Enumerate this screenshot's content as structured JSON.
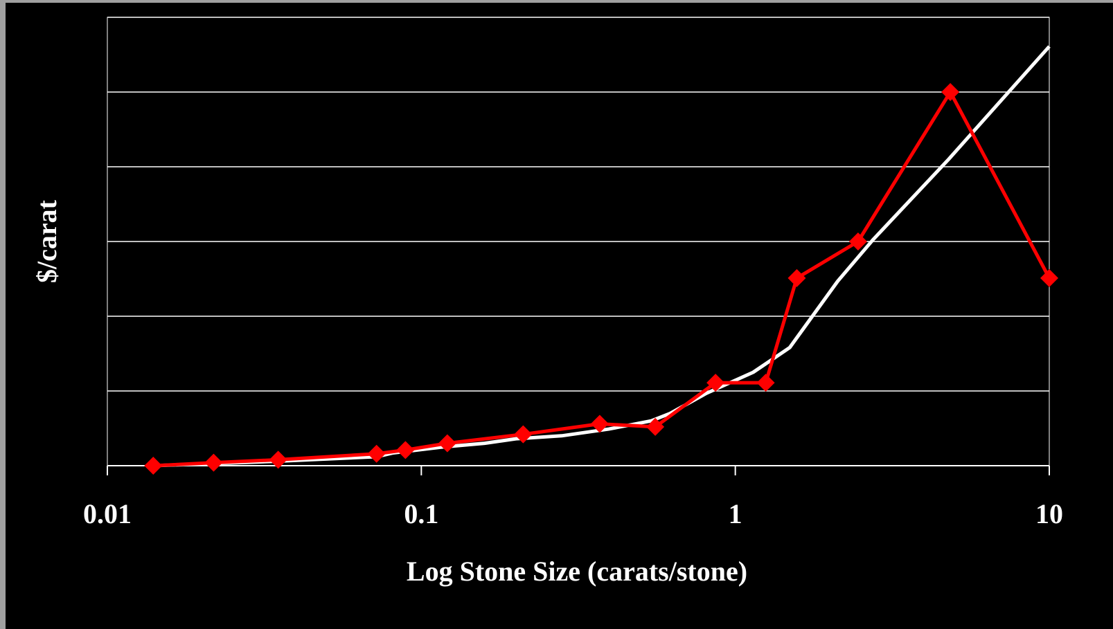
{
  "chart_data": {
    "type": "line",
    "xlabel": "Log Stone Size (carats/stone)",
    "ylabel": "$/carat",
    "xscale": "log",
    "xlim": [
      0.01,
      10
    ],
    "xticks": [
      0.01,
      0.1,
      1,
      10
    ],
    "ylim": [
      0,
      6
    ],
    "yticks": [
      0,
      1,
      2,
      3,
      4,
      5,
      6
    ],
    "grid": true,
    "series": [
      {
        "color": "#ffffff",
        "marker": "none",
        "x": [
          0.014,
          0.035,
          0.072,
          0.081,
          0.117,
          0.159,
          0.2,
          0.28,
          0.395,
          0.54,
          0.62,
          0.81,
          1.14,
          1.49,
          2.12,
          2.74,
          4.78,
          10
        ],
        "values": [
          0,
          0.06,
          0.12,
          0.17,
          0.25,
          0.3,
          0.36,
          0.4,
          0.49,
          0.6,
          0.7,
          0.97,
          1.25,
          1.58,
          2.47,
          3.02,
          4.1,
          5.61
        ]
      },
      {
        "color": "#ff0000",
        "marker": "diamond",
        "x": [
          0.014,
          0.0218,
          0.035,
          0.072,
          0.089,
          0.121,
          0.211,
          0.37,
          0.556,
          0.865,
          1.25,
          1.57,
          2.46,
          4.84,
          10
        ],
        "values": [
          0,
          0.04,
          0.08,
          0.16,
          0.21,
          0.3,
          0.42,
          0.56,
          0.52,
          1.11,
          1.11,
          2.51,
          3.0,
          5.0,
          2.51
        ]
      }
    ]
  }
}
